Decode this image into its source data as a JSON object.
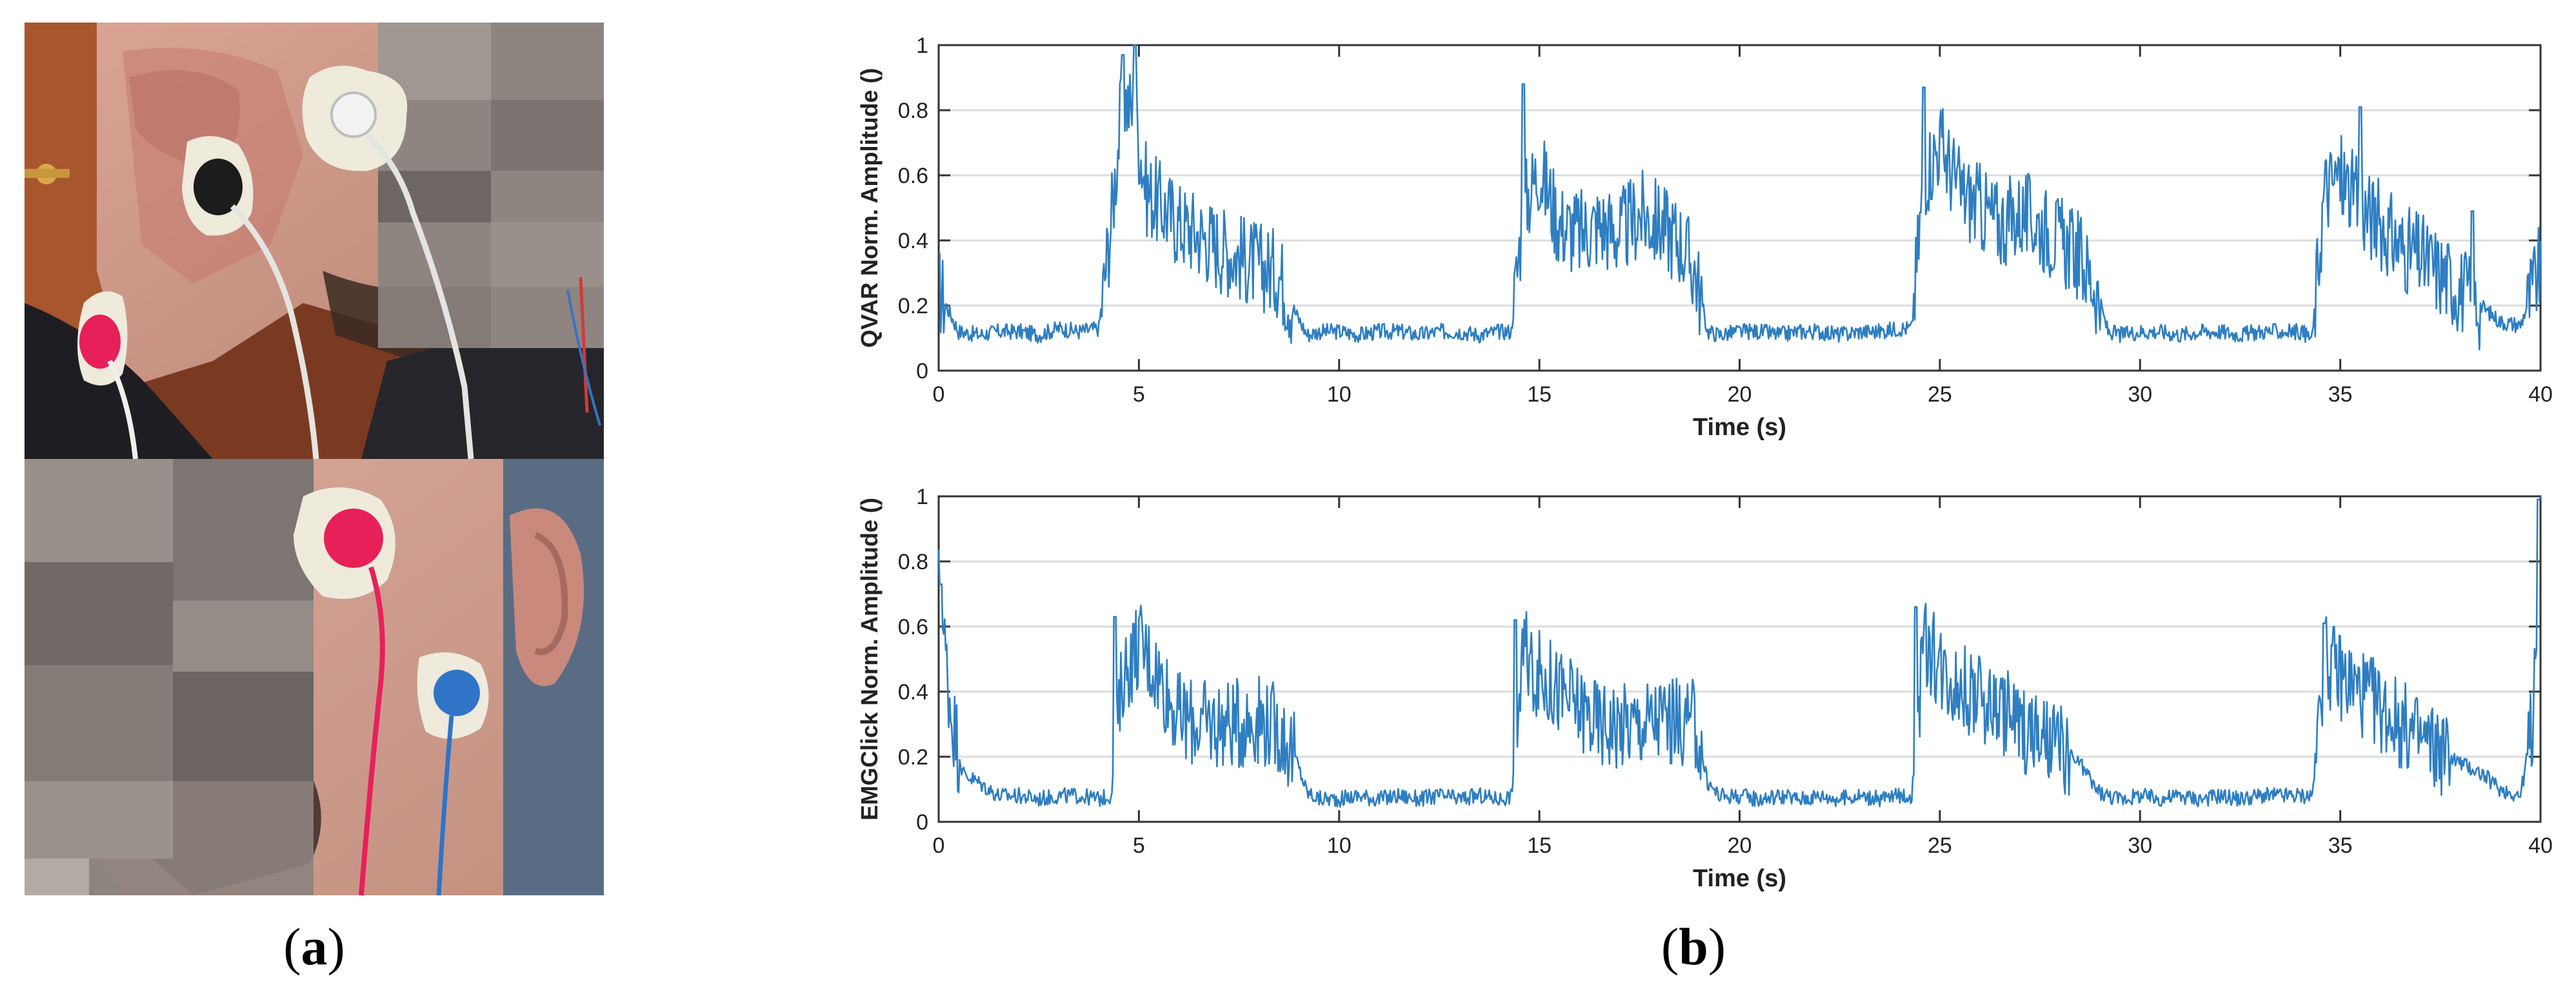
{
  "figure": {
    "panel_a": {
      "caption_open": "(",
      "caption_letter": "a",
      "caption_close": ")",
      "description_top": "photo-side-view-electrodes-cheek-jaw",
      "description_bottom": "photo-front-view-electrodes-cheek"
    },
    "panel_b": {
      "caption_open": "(",
      "caption_letter": "b",
      "caption_close": ")"
    },
    "colors": {
      "line": "#2e7ec1",
      "grid": "#dcdcdc",
      "axis": "#333333",
      "electrode_pad": "#eeeadc",
      "electrode_red": "#e8205a",
      "electrode_black": "#1c1c1c",
      "electrode_white": "#f2f2f2",
      "electrode_blue": "#2f74c7"
    }
  },
  "chart_data": [
    {
      "type": "line",
      "title": "",
      "xlabel": "Time (s)",
      "ylabel": "QVAR Norm. Amplitude ()",
      "xlim": [
        0,
        40
      ],
      "ylim": [
        0,
        1
      ],
      "xticks": [
        0,
        5,
        10,
        15,
        20,
        25,
        30,
        35,
        40
      ],
      "yticks": [
        0,
        0.2,
        0.4,
        0.6,
        0.8,
        1
      ],
      "ytick_labels": [
        "0",
        "0.2",
        "0.4",
        "0.6",
        "0.8",
        "1"
      ],
      "grid": "horizontal",
      "series": [
        {
          "name": "QVAR",
          "x": [
            0,
            0.5,
            1,
            1.5,
            2,
            2.5,
            3,
            3.5,
            4,
            4.3,
            4.6,
            4.9,
            5.2,
            5.6,
            6,
            6.5,
            7,
            7.5,
            8,
            8.5,
            8.9,
            9.2,
            9.5,
            10,
            10.5,
            11,
            11.5,
            12,
            12.5,
            13,
            13.5,
            14,
            14.3,
            14.6,
            15,
            15.5,
            16,
            16.5,
            17,
            17.5,
            18,
            18.5,
            18.9,
            19.2,
            19.5,
            20,
            20.5,
            21,
            21.5,
            22,
            22.5,
            23,
            23.5,
            24,
            24.3,
            24.6,
            25,
            25.5,
            26,
            26.5,
            27,
            27.5,
            28,
            28.5,
            28.9,
            29.2,
            29.5,
            30,
            30.5,
            31,
            31.5,
            32,
            32.5,
            33,
            33.5,
            34,
            34.3,
            34.6,
            35,
            35.5,
            36,
            36.5,
            37,
            37.5,
            38,
            38.5,
            39,
            39.5,
            40
          ],
          "values": [
            0.25,
            0.12,
            0.11,
            0.12,
            0.12,
            0.11,
            0.13,
            0.12,
            0.13,
            0.45,
            0.85,
            0.78,
            0.55,
            0.5,
            0.45,
            0.42,
            0.38,
            0.35,
            0.32,
            0.3,
            0.18,
            0.11,
            0.12,
            0.12,
            0.11,
            0.12,
            0.12,
            0.11,
            0.12,
            0.12,
            0.11,
            0.12,
            0.12,
            0.5,
            0.62,
            0.45,
            0.42,
            0.45,
            0.42,
            0.48,
            0.45,
            0.4,
            0.3,
            0.12,
            0.11,
            0.12,
            0.12,
            0.11,
            0.12,
            0.12,
            0.11,
            0.12,
            0.12,
            0.13,
            0.13,
            0.6,
            0.7,
            0.55,
            0.5,
            0.45,
            0.48,
            0.45,
            0.4,
            0.35,
            0.25,
            0.12,
            0.11,
            0.12,
            0.12,
            0.11,
            0.12,
            0.12,
            0.11,
            0.12,
            0.12,
            0.12,
            0.1,
            0.55,
            0.6,
            0.5,
            0.45,
            0.38,
            0.35,
            0.3,
            0.25,
            0.2,
            0.15,
            0.14,
            0.32
          ],
          "spikes": [
            {
              "x": 4.6,
              "y": 0.97
            },
            {
              "x": 4.9,
              "y": 1.0
            },
            {
              "x": 14.6,
              "y": 0.88
            },
            {
              "x": 24.6,
              "y": 0.87
            },
            {
              "x": 35.5,
              "y": 0.81
            },
            {
              "x": 38.3,
              "y": 0.49
            }
          ]
        }
      ]
    },
    {
      "type": "line",
      "title": "",
      "xlabel": "Time (s)",
      "ylabel": "EMGClick Norm. Amplitude ()",
      "xlim": [
        0,
        40
      ],
      "ylim": [
        0,
        1
      ],
      "xticks": [
        0,
        5,
        10,
        15,
        20,
        25,
        30,
        35,
        40
      ],
      "yticks": [
        0,
        0.2,
        0.4,
        0.6,
        0.8,
        1
      ],
      "ytick_labels": [
        "0",
        "0.2",
        "0.4",
        "0.6",
        "0.8",
        "1"
      ],
      "grid": "horizontal",
      "series": [
        {
          "name": "EMGClick",
          "x": [
            0,
            0.1,
            0.3,
            0.6,
            1,
            1.5,
            2,
            2.5,
            3,
            3.5,
            4,
            4.3,
            4.6,
            5,
            5.5,
            6,
            6.5,
            7,
            7.5,
            8,
            8.5,
            8.9,
            9.2,
            9.5,
            10,
            10.5,
            11,
            11.5,
            12,
            12.5,
            13,
            13.5,
            14,
            14.3,
            14.6,
            15,
            15.5,
            16,
            16.5,
            17,
            17.5,
            18,
            18.5,
            18.9,
            19.2,
            19.5,
            20,
            20.5,
            21,
            21.5,
            22,
            22.5,
            23,
            23.5,
            24,
            24.3,
            24.6,
            25,
            25.5,
            26,
            26.5,
            27,
            27.5,
            28,
            28.5,
            28.9,
            29.2,
            29.5,
            30,
            30.5,
            31,
            31.5,
            32,
            32.5,
            33,
            33.5,
            34,
            34.3,
            34.6,
            35,
            35.5,
            36,
            36.5,
            37,
            37.5,
            38,
            38.5,
            39,
            39.5,
            39.8,
            40
          ],
          "values": [
            0.72,
            0.6,
            0.35,
            0.15,
            0.12,
            0.08,
            0.08,
            0.07,
            0.08,
            0.08,
            0.07,
            0.08,
            0.45,
            0.55,
            0.45,
            0.32,
            0.3,
            0.3,
            0.3,
            0.32,
            0.28,
            0.2,
            0.09,
            0.07,
            0.07,
            0.08,
            0.07,
            0.08,
            0.07,
            0.08,
            0.07,
            0.08,
            0.07,
            0.08,
            0.52,
            0.45,
            0.4,
            0.35,
            0.3,
            0.3,
            0.3,
            0.32,
            0.3,
            0.3,
            0.12,
            0.08,
            0.08,
            0.07,
            0.08,
            0.07,
            0.08,
            0.07,
            0.08,
            0.07,
            0.08,
            0.08,
            0.55,
            0.48,
            0.42,
            0.38,
            0.35,
            0.3,
            0.25,
            0.22,
            0.18,
            0.1,
            0.08,
            0.07,
            0.08,
            0.07,
            0.08,
            0.07,
            0.08,
            0.07,
            0.08,
            0.08,
            0.08,
            0.08,
            0.5,
            0.45,
            0.4,
            0.35,
            0.3,
            0.25,
            0.22,
            0.18,
            0.15,
            0.1,
            0.08,
            0.3,
            1.0
          ],
          "spikes": [
            {
              "x": 0.05,
              "y": 0.73
            },
            {
              "x": 4.4,
              "y": 0.63
            },
            {
              "x": 14.4,
              "y": 0.62
            },
            {
              "x": 24.4,
              "y": 0.66
            },
            {
              "x": 34.6,
              "y": 0.61
            },
            {
              "x": 39.95,
              "y": 0.99
            }
          ]
        }
      ]
    }
  ]
}
